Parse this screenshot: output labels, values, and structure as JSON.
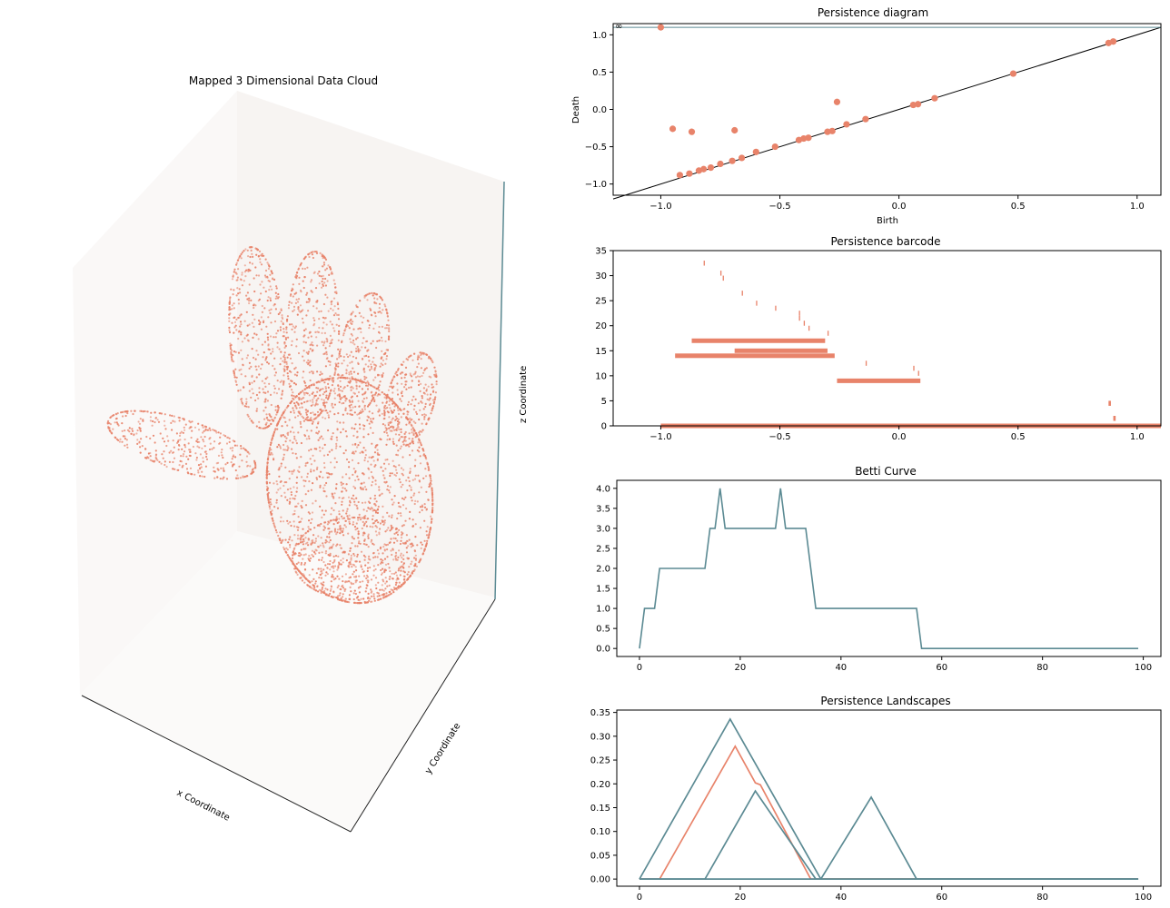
{
  "colors": {
    "salmon": "#E8836A",
    "teal": "#5B8A93",
    "diag": "#000000",
    "pane": "#F3EFEC"
  },
  "cloud": {
    "title": "Mapped 3 Dimensional Data Cloud",
    "xlabel": "x Coordinate",
    "ylabel": "y Coordinate",
    "zlabel": "z Coordinate"
  },
  "chart_data": [
    {
      "type": "scatter",
      "title": "Persistence diagram",
      "xlabel": "Birth",
      "ylabel": "Death",
      "xlim": [
        -1.2,
        1.1
      ],
      "ylim": [
        -1.15,
        1.15
      ],
      "xticks": [
        "−1.0",
        "−0.5",
        "0.0",
        "0.5",
        "1.0"
      ],
      "yticks": [
        "−1.0",
        "−0.5",
        "0.0",
        "0.5",
        "1.0"
      ],
      "infinity_label": "∞",
      "infinity_level": 1.1,
      "points": [
        [
          -1.0,
          1.1
        ],
        [
          -0.95,
          -0.26
        ],
        [
          -0.87,
          -0.3
        ],
        [
          -0.69,
          -0.28
        ],
        [
          -0.26,
          0.1
        ],
        [
          -0.92,
          -0.88
        ],
        [
          -0.88,
          -0.86
        ],
        [
          -0.84,
          -0.82
        ],
        [
          -0.82,
          -0.8
        ],
        [
          -0.79,
          -0.78
        ],
        [
          -0.75,
          -0.73
        ],
        [
          -0.7,
          -0.69
        ],
        [
          -0.66,
          -0.65
        ],
        [
          -0.6,
          -0.57
        ],
        [
          -0.52,
          -0.5
        ],
        [
          -0.42,
          -0.41
        ],
        [
          -0.4,
          -0.39
        ],
        [
          -0.38,
          -0.38
        ],
        [
          -0.3,
          -0.3
        ],
        [
          -0.28,
          -0.29
        ],
        [
          -0.22,
          -0.2
        ],
        [
          -0.14,
          -0.13
        ],
        [
          0.06,
          0.06
        ],
        [
          0.08,
          0.07
        ],
        [
          0.15,
          0.15
        ],
        [
          0.48,
          0.48
        ],
        [
          0.88,
          0.89
        ],
        [
          0.9,
          0.91
        ]
      ]
    },
    {
      "type": "bar",
      "title": "Persistence barcode",
      "xlim": [
        -1.2,
        1.1
      ],
      "ylim": [
        0,
        35
      ],
      "xticks": [
        "−1.0",
        "−0.5",
        "0.0",
        "0.5",
        "1.0"
      ],
      "yticks": [
        "0",
        "5",
        "10",
        "15",
        "20",
        "25",
        "30",
        "35"
      ],
      "bars": [
        [
          0,
          -1.0,
          1.1
        ],
        [
          1,
          0.9,
          0.91
        ],
        [
          4,
          0.88,
          0.89
        ],
        [
          9,
          -0.26,
          0.09
        ],
        [
          10,
          0.08,
          0.085
        ],
        [
          11,
          0.06,
          0.065
        ],
        [
          12,
          -0.14,
          -0.135
        ],
        [
          14,
          -0.94,
          -0.27
        ],
        [
          15,
          -0.69,
          -0.3
        ],
        [
          17,
          -0.87,
          -0.31
        ],
        [
          18,
          -0.3,
          -0.295
        ],
        [
          19,
          -0.38,
          -0.375
        ],
        [
          20,
          -0.4,
          -0.395
        ],
        [
          21,
          -0.42,
          -0.415
        ],
        [
          22,
          -0.42,
          -0.415
        ],
        [
          23,
          -0.52,
          -0.515
        ],
        [
          24,
          -0.6,
          -0.595
        ],
        [
          26,
          -0.66,
          -0.655
        ],
        [
          29,
          -0.74,
          -0.735
        ],
        [
          30,
          -0.75,
          -0.745
        ],
        [
          32,
          -0.82,
          -0.815
        ]
      ]
    },
    {
      "type": "line",
      "title": "Betti Curve",
      "xlim": [
        -4.5,
        103.5
      ],
      "ylim": [
        -0.2,
        4.2
      ],
      "xticks": [
        "0",
        "20",
        "40",
        "60",
        "80",
        "100"
      ],
      "yticks": [
        "0.0",
        "0.5",
        "1.0",
        "1.5",
        "2.0",
        "2.5",
        "3.0",
        "3.5",
        "4.0"
      ],
      "series": [
        {
          "x": [
            0,
            1,
            3,
            4,
            13,
            14,
            15,
            16,
            17,
            26,
            27,
            28,
            29,
            33,
            35,
            55,
            56,
            99
          ],
          "y": [
            0,
            1,
            1,
            2,
            2,
            3,
            3,
            4,
            3,
            3,
            3,
            4,
            3,
            3,
            1,
            1,
            0,
            0
          ]
        }
      ]
    },
    {
      "type": "line",
      "title": "Persistence Landscapes",
      "xlim": [
        -4.5,
        103.5
      ],
      "ylim": [
        -0.015,
        0.355
      ],
      "xticks": [
        "0",
        "20",
        "40",
        "60",
        "80",
        "100"
      ],
      "yticks": [
        "0.00",
        "0.05",
        "0.10",
        "0.15",
        "0.20",
        "0.25",
        "0.30",
        "0.35"
      ],
      "series": [
        {
          "color": "teal",
          "x": [
            0,
            18,
            36,
            37,
            99
          ],
          "y": [
            0,
            0.336,
            0,
            0,
            0
          ]
        },
        {
          "color": "salmon",
          "x": [
            0,
            4,
            19,
            23,
            24,
            34,
            99
          ],
          "y": [
            0,
            0,
            0.279,
            0.202,
            0.198,
            0,
            0
          ]
        },
        {
          "color": "teal",
          "x": [
            0,
            13,
            23,
            35,
            99
          ],
          "y": [
            0,
            0,
            0.185,
            0,
            0
          ]
        },
        {
          "color": "teal",
          "x": [
            0,
            36,
            46,
            55,
            99
          ],
          "y": [
            0,
            0,
            0.172,
            0,
            0
          ]
        }
      ]
    }
  ]
}
